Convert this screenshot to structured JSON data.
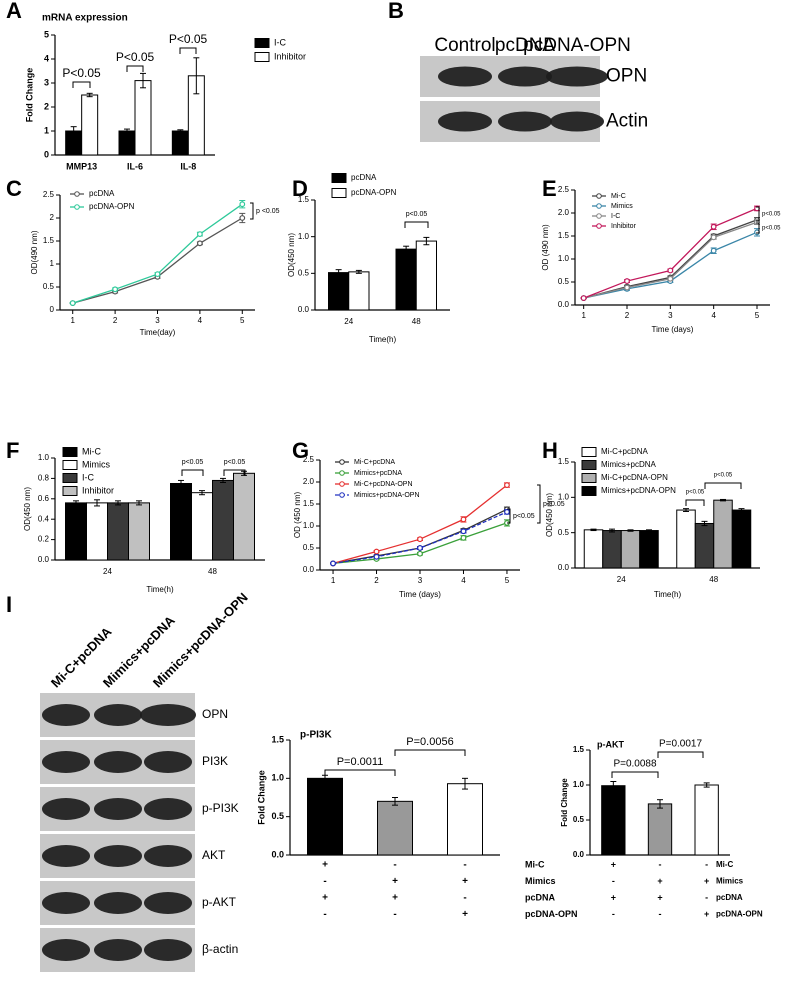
{
  "chart_data": [
    {
      "type": "bar",
      "panel": "A",
      "title": "mRNA expression",
      "ylabel": "Fold Change",
      "categories": [
        "MMP13",
        "IL-6",
        "IL-8"
      ],
      "series": [
        {
          "name": "I-C",
          "color": "#000000",
          "values": [
            1.0,
            1.0,
            1.0
          ],
          "errors": [
            0.18,
            0.08,
            0.05
          ]
        },
        {
          "name": "Inhibitor",
          "color": "#ffffff",
          "values": [
            2.5,
            3.1,
            3.3
          ],
          "errors": [
            0.07,
            0.3,
            0.75
          ]
        }
      ],
      "ylim": [
        0,
        5
      ],
      "yticks": [
        0,
        1,
        2,
        3,
        4,
        5
      ],
      "annotations": [
        "P<0.05",
        "P<0.05",
        "P<0.05"
      ]
    },
    {
      "type": "line",
      "panel": "C",
      "xlabel": "Time(day)",
      "ylabel": "OD(490 nm)",
      "x": [
        1,
        2,
        3,
        4,
        5
      ],
      "series": [
        {
          "name": "pcDNA",
          "color": "#555555",
          "values": [
            0.15,
            0.4,
            0.72,
            1.45,
            2.0
          ],
          "errors": [
            0.01,
            0.03,
            0.03,
            0.03,
            0.1
          ]
        },
        {
          "name": "pcDNA-OPN",
          "color": "#2ec99a",
          "values": [
            0.15,
            0.45,
            0.78,
            1.65,
            2.3
          ],
          "errors": [
            0.01,
            0.03,
            0.03,
            0.04,
            0.08
          ]
        }
      ],
      "xlim": [
        0.7,
        5.3
      ],
      "xticks": [
        1,
        2,
        3,
        4,
        5
      ],
      "ylim": [
        0,
        2.5
      ],
      "yticks": [
        0,
        0.5,
        1,
        1.5,
        2,
        2.5
      ],
      "annotations": [
        "p <0.05"
      ]
    },
    {
      "type": "bar",
      "panel": "D",
      "xlabel": "Time(h)",
      "ylabel": "OD(450 nm)",
      "categories": [
        "24",
        "48"
      ],
      "series": [
        {
          "name": "pcDNA",
          "color": "#000000",
          "values": [
            0.51,
            0.83
          ],
          "errors": [
            0.04,
            0.04
          ]
        },
        {
          "name": "pcDNA-OPN",
          "color": "#ffffff",
          "values": [
            0.52,
            0.94
          ],
          "errors": [
            0.02,
            0.05
          ]
        }
      ],
      "ylim": [
        0,
        1.5
      ],
      "yticks": [
        {
          "value": 0,
          "label": "0.0"
        },
        0.5,
        {
          "value": 1,
          "label": "1.0"
        },
        1.5
      ],
      "annotations": [
        "p<0.05"
      ]
    },
    {
      "type": "line",
      "panel": "E",
      "xlabel": "Time (days)",
      "ylabel": "OD (490 nm)",
      "x": [
        1,
        2,
        3,
        4,
        5
      ],
      "series": [
        {
          "name": "Mi-C",
          "color": "#444444",
          "values": [
            0.15,
            0.4,
            0.6,
            1.5,
            1.85
          ],
          "errors": [
            0.01,
            0.03,
            0.03,
            0.04,
            0.05
          ]
        },
        {
          "name": "Mimics",
          "color": "#3a86a8",
          "values": [
            0.15,
            0.35,
            0.52,
            1.18,
            1.58
          ],
          "errors": [
            0.01,
            0.03,
            0.03,
            0.06,
            0.08
          ]
        },
        {
          "name": "I-C",
          "color": "#888888",
          "values": [
            0.15,
            0.38,
            0.57,
            1.47,
            1.8
          ],
          "errors": [
            0.01,
            0.03,
            0.03,
            0.04,
            0.05
          ]
        },
        {
          "name": "Inhibitor",
          "color": "#c2185b",
          "values": [
            0.15,
            0.52,
            0.75,
            1.7,
            2.1
          ],
          "errors": [
            0.01,
            0.03,
            0.03,
            0.06,
            0.05
          ]
        }
      ],
      "xlim": [
        0.8,
        5.3
      ],
      "xticks": [
        1,
        2,
        3,
        4,
        5
      ],
      "ylim": [
        0,
        2.5
      ],
      "yticks": [
        {
          "value": 0,
          "label": "0.0"
        },
        0.5,
        {
          "value": 1,
          "label": "1.0"
        },
        1.5,
        {
          "value": 2,
          "label": "2.0"
        },
        2.5
      ],
      "annotations": [
        "p<0.05",
        "p<0.05"
      ]
    },
    {
      "type": "bar",
      "panel": "F",
      "xlabel": "Time(h)",
      "ylabel": "OD(450 nm)",
      "categories": [
        "24",
        "48"
      ],
      "series": [
        {
          "name": "Mi-C",
          "color": "#000000",
          "values": [
            0.56,
            0.75
          ],
          "errors": [
            0.02,
            0.03
          ]
        },
        {
          "name": "Mimics",
          "color": "#ffffff",
          "values": [
            0.56,
            0.66
          ],
          "errors": [
            0.03,
            0.02
          ]
        },
        {
          "name": "I-C",
          "color": "#3a3a3a",
          "values": [
            0.56,
            0.78
          ],
          "errors": [
            0.02,
            0.02
          ]
        },
        {
          "name": "Inhibitor",
          "color": "#c0c0c0",
          "values": [
            0.56,
            0.85
          ],
          "errors": [
            0.02,
            0.02
          ]
        }
      ],
      "ylim": [
        0,
        1.0
      ],
      "yticks": [
        {
          "value": 0,
          "label": "0.0"
        },
        0.2,
        0.4,
        0.6,
        0.8,
        {
          "value": 1,
          "label": "1.0"
        }
      ],
      "annotations": [
        "p<0.05",
        "p<0.05"
      ]
    },
    {
      "type": "line",
      "panel": "G",
      "xlabel": "Time (days)",
      "ylabel": "OD (450 nm)",
      "x": [
        1,
        2,
        3,
        4,
        5
      ],
      "series": [
        {
          "name": "Mi-C+pcDNA",
          "color": "#333333",
          "values": [
            0.15,
            0.32,
            0.5,
            0.9,
            1.38
          ],
          "errors": [
            0.01,
            0.02,
            0.03,
            0.04,
            0.05
          ]
        },
        {
          "name": "Mimics+pcDNA",
          "color": "#3aa03a",
          "values": [
            0.15,
            0.25,
            0.37,
            0.73,
            1.07
          ],
          "errors": [
            0.01,
            0.02,
            0.03,
            0.05,
            0.07
          ]
        },
        {
          "name": "Mi-C+pcDNA-OPN",
          "color": "#e53030",
          "values": [
            0.15,
            0.42,
            0.7,
            1.15,
            1.93
          ],
          "errors": [
            0.01,
            0.02,
            0.03,
            0.06,
            0.05
          ]
        },
        {
          "name": "Mimics+pcDNA-OPN",
          "color": "#2030c0",
          "dashed": true,
          "values": [
            0.15,
            0.3,
            0.5,
            0.88,
            1.32
          ],
          "errors": [
            0.01,
            0.02,
            0.03,
            0.04,
            0.05
          ]
        }
      ],
      "xlim": [
        0.7,
        5.3
      ],
      "xticks": [
        1,
        2,
        3,
        4,
        5
      ],
      "ylim": [
        0,
        2.5
      ],
      "yticks": [
        {
          "value": 0,
          "label": "0.0"
        },
        0.5,
        {
          "value": 1,
          "label": "1.0"
        },
        1.5,
        {
          "value": 2,
          "label": "2.0"
        },
        2.5
      ],
      "annotations": [
        "p<0.05",
        "p<0.05"
      ]
    },
    {
      "type": "bar",
      "panel": "H",
      "xlabel": "Time(h)",
      "ylabel": "OD(450 nm)",
      "categories": [
        "24",
        "48"
      ],
      "series": [
        {
          "name": "Mi-C+pcDNA",
          "color": "#ffffff",
          "values": [
            0.54,
            0.82
          ],
          "errors": [
            0.01,
            0.02
          ]
        },
        {
          "name": "Mimics+pcDNA",
          "color": "#3a3a3a",
          "values": [
            0.53,
            0.63
          ],
          "errors": [
            0.02,
            0.03
          ]
        },
        {
          "name": "Mi-C+pcDNA-OPN",
          "color": "#b0b0b0",
          "values": [
            0.53,
            0.96
          ],
          "errors": [
            0.01,
            0.01
          ]
        },
        {
          "name": "Mimics+pcDNA-OPN",
          "color": "#000000",
          "values": [
            0.53,
            0.82
          ],
          "errors": [
            0.01,
            0.02
          ]
        }
      ],
      "ylim": [
        0,
        1.5
      ],
      "yticks": [
        {
          "value": 0,
          "label": "0.0"
        },
        0.5,
        {
          "value": 1,
          "label": "1.0"
        },
        1.5
      ],
      "annotations": [
        "p<0.05",
        "p<0.05"
      ]
    },
    {
      "type": "bar",
      "title": "p-PI3K",
      "ylabel": "Fold Change",
      "categories": [
        null,
        null,
        null
      ],
      "values": [
        1.0,
        0.7,
        0.93
      ],
      "errors": [
        0.04,
        0.05,
        0.07
      ],
      "colors": [
        "#000000",
        "#999999",
        "#ffffff"
      ],
      "ylim": [
        0,
        1.5
      ],
      "yticks": [
        {
          "value": 0,
          "label": "0.0"
        },
        0.5,
        {
          "value": 1,
          "label": "1.0"
        },
        1.5
      ],
      "annotations": [
        "P=0.0011",
        "P=0.0056"
      ],
      "conditions": [
        {
          "label": "Mi-C",
          "signs": [
            "+",
            "-",
            "-"
          ]
        },
        {
          "label": "Mimics",
          "signs": [
            "-",
            "+",
            "+"
          ]
        },
        {
          "label": "pcDNA",
          "signs": [
            "+",
            "+",
            "-"
          ]
        },
        {
          "label": "pcDNA-OPN",
          "signs": [
            "-",
            "-",
            "+"
          ]
        }
      ]
    },
    {
      "type": "bar",
      "title": "p-AKT",
      "ylabel": "Fold Change",
      "categories": [
        null,
        null,
        null
      ],
      "values": [
        0.99,
        0.73,
        1.0
      ],
      "errors": [
        0.06,
        0.06,
        0.03
      ],
      "colors": [
        "#000000",
        "#999999",
        "#ffffff"
      ],
      "ylim": [
        0,
        1.5
      ],
      "yticks": [
        {
          "value": 0,
          "label": "0.0"
        },
        0.5,
        {
          "value": 1,
          "label": "1.0"
        },
        1.5
      ],
      "annotations": [
        "P=0.0088",
        "P=0.0017"
      ],
      "conditions": [
        {
          "label": "Mi-C",
          "signs": [
            "+",
            "-",
            "-"
          ]
        },
        {
          "label": "Mimics",
          "signs": [
            "-",
            "+",
            "+"
          ]
        },
        {
          "label": "pcDNA",
          "signs": [
            "+",
            "+",
            "-"
          ]
        },
        {
          "label": "pcDNA-OPN",
          "signs": [
            "-",
            "-",
            "+"
          ]
        }
      ]
    }
  ],
  "blots": [
    {
      "panel": "B",
      "lanes": [
        "Control",
        "pcDNA",
        "pcDNA-OPN"
      ],
      "bands": [
        "OPN",
        "Actin"
      ]
    },
    {
      "panel": "I",
      "lanes": [
        "Mi-C+pcDNA",
        "Mimics+pcDNA",
        "Mimics+pcDNA-OPN"
      ],
      "bands": [
        "OPN",
        "PI3K",
        "p-PI3K",
        "AKT",
        "p-AKT",
        "β-actin"
      ]
    }
  ]
}
